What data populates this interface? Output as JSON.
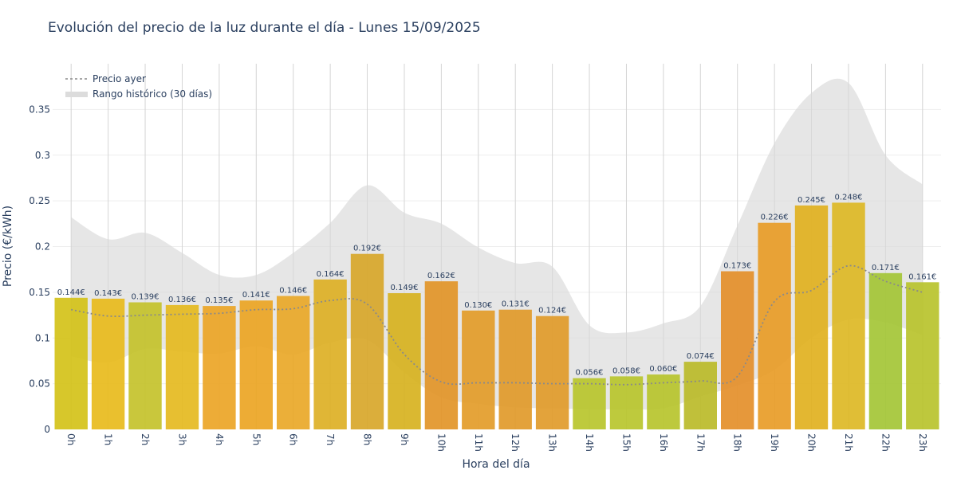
{
  "chart_data": {
    "type": "bar",
    "title": "Evolución del precio de la luz durante el día - Lunes 15/09/2025",
    "xlabel": "Hora del día",
    "ylabel": "Precio (€/kWh)",
    "ylim": [
      0,
      0.4
    ],
    "yticks": [
      0,
      0.05,
      0.1,
      0.15,
      0.2,
      0.25,
      0.3,
      0.35
    ],
    "ytick_labels": [
      "0",
      "0.05",
      "0.1",
      "0.15",
      "0.2",
      "0.25",
      "0.3",
      "0.35"
    ],
    "categories": [
      "0h",
      "1h",
      "2h",
      "3h",
      "4h",
      "5h",
      "6h",
      "7h",
      "8h",
      "9h",
      "10h",
      "11h",
      "12h",
      "13h",
      "14h",
      "15h",
      "16h",
      "17h",
      "18h",
      "19h",
      "20h",
      "21h",
      "22h",
      "23h"
    ],
    "values": [
      0.144,
      0.143,
      0.139,
      0.136,
      0.135,
      0.141,
      0.146,
      0.164,
      0.192,
      0.149,
      0.162,
      0.13,
      0.131,
      0.124,
      0.056,
      0.058,
      0.06,
      0.074,
      0.173,
      0.226,
      0.245,
      0.248,
      0.171,
      0.161
    ],
    "value_labels": [
      "0.144€",
      "0.143€",
      "0.139€",
      "0.136€",
      "0.135€",
      "0.141€",
      "0.146€",
      "0.164€",
      "0.192€",
      "0.149€",
      "0.162€",
      "0.130€",
      "0.131€",
      "0.124€",
      "0.056€",
      "0.058€",
      "0.060€",
      "0.074€",
      "0.173€",
      "0.226€",
      "0.245€",
      "0.248€",
      "0.171€",
      "0.161€"
    ],
    "bar_colors": [
      "#d4c219",
      "#e8bb1c",
      "#c4c22b",
      "#e5ba20",
      "#eca526",
      "#eca524",
      "#e9a828",
      "#ddb025",
      "#d8a72a",
      "#d7b21f",
      "#e29528",
      "#e39c29",
      "#e19a2a",
      "#e19b2a",
      "#b9c52c",
      "#b9c52c",
      "#b7c42d",
      "#bbbb29",
      "#e48f2a",
      "#e89c27",
      "#e1b120",
      "#ddb825",
      "#a4c536",
      "#b8c32d"
    ],
    "series": [
      {
        "name": "Precio ayer",
        "style": "dotted-line",
        "color": "#8a8a8a",
        "values": [
          0.131,
          0.124,
          0.125,
          0.126,
          0.127,
          0.131,
          0.132,
          0.141,
          0.137,
          0.082,
          0.052,
          0.051,
          0.051,
          0.05,
          0.05,
          0.049,
          0.051,
          0.053,
          0.058,
          0.14,
          0.152,
          0.179,
          0.162,
          0.15
        ]
      },
      {
        "name": "Rango histórico (30 días)",
        "style": "band",
        "color": "#d9d9d9",
        "upper": [
          0.232,
          0.208,
          0.215,
          0.193,
          0.169,
          0.169,
          0.193,
          0.226,
          0.267,
          0.237,
          0.225,
          0.199,
          0.182,
          0.178,
          0.114,
          0.106,
          0.116,
          0.135,
          0.223,
          0.313,
          0.368,
          0.379,
          0.3,
          0.268
        ],
        "lower": [
          0.08,
          0.073,
          0.088,
          0.085,
          0.083,
          0.091,
          0.082,
          0.095,
          0.098,
          0.062,
          0.035,
          0.028,
          0.024,
          0.023,
          0.022,
          0.022,
          0.023,
          0.036,
          0.048,
          0.065,
          0.1,
          0.12,
          0.117,
          0.103
        ]
      }
    ],
    "legend": {
      "position": "top-left",
      "entries": [
        "Precio ayer",
        "Rango histórico (30 días)"
      ]
    },
    "grid": true
  }
}
